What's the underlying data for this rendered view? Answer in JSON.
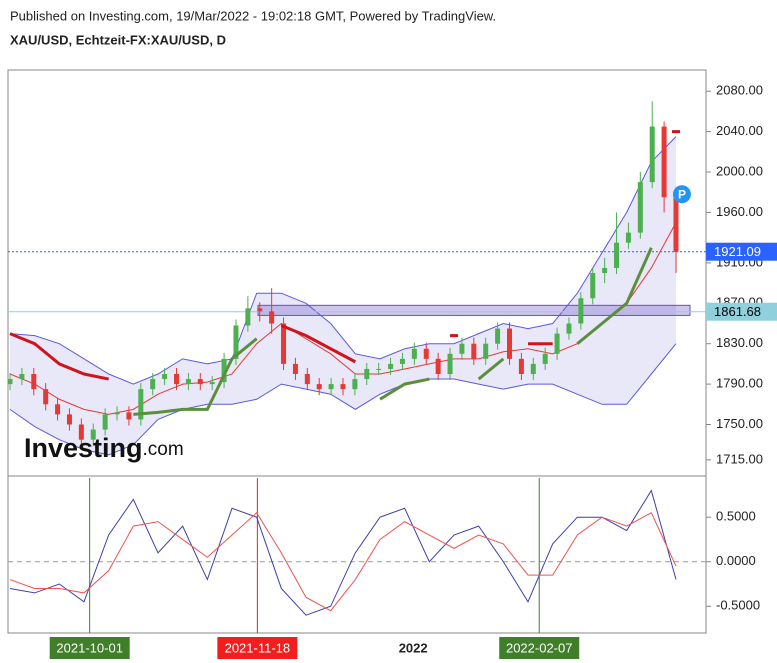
{
  "header": {
    "published": "Published on Investing.com, 19/Mar/2022 - 19:02:18 GMT, Powered by TradingView.",
    "symbol": "XAU/USD, Echtzeit-FX:XAU/USD, D"
  },
  "logo": {
    "brand": "Investing",
    "suffix": ".com"
  },
  "chart_data": [
    {
      "type": "candlestick",
      "up_color": "#4caf50",
      "down_color": "#e53935",
      "open": [
        1790,
        1795,
        1800,
        1785,
        1770,
        1760,
        1750,
        1735,
        1745,
        1760,
        1762,
        1755,
        1785,
        1795,
        1800,
        1790,
        1795,
        1790,
        1792,
        1815,
        1848,
        1865,
        1862,
        1850,
        1810,
        1800,
        1790,
        1785,
        1790,
        1785,
        1795,
        1805,
        1805,
        1810,
        1815,
        1825,
        1815,
        1800,
        1820,
        1830,
        1815,
        1830,
        1845,
        1815,
        1800,
        1810,
        1820,
        1840,
        1850,
        1875,
        1900,
        1905,
        1930,
        1940,
        1990,
        2045,
        1975
      ],
      "high": [
        1801,
        1806,
        1806,
        1791,
        1776,
        1766,
        1756,
        1751,
        1766,
        1768,
        1768,
        1791,
        1801,
        1806,
        1806,
        1801,
        1801,
        1798,
        1821,
        1854,
        1877,
        1871,
        1885,
        1856,
        1816,
        1806,
        1796,
        1796,
        1796,
        1801,
        1811,
        1811,
        1816,
        1821,
        1831,
        1831,
        1821,
        1826,
        1836,
        1836,
        1836,
        1851,
        1851,
        1821,
        1816,
        1826,
        1846,
        1856,
        1881,
        1906,
        1915,
        1960,
        1950,
        2000,
        2070,
        2050,
        1985
      ],
      "low": [
        1784,
        1789,
        1779,
        1764,
        1754,
        1744,
        1729,
        1729,
        1739,
        1754,
        1749,
        1749,
        1779,
        1789,
        1784,
        1784,
        1784,
        1784,
        1786,
        1809,
        1842,
        1852,
        1840,
        1804,
        1794,
        1784,
        1779,
        1779,
        1779,
        1779,
        1789,
        1799,
        1799,
        1804,
        1809,
        1809,
        1794,
        1794,
        1814,
        1809,
        1809,
        1824,
        1809,
        1794,
        1794,
        1804,
        1814,
        1834,
        1844,
        1869,
        1890,
        1899,
        1924,
        1934,
        1984,
        1960,
        1900
      ],
      "close": [
        1795,
        1800,
        1785,
        1770,
        1760,
        1750,
        1735,
        1745,
        1760,
        1762,
        1755,
        1785,
        1795,
        1800,
        1790,
        1795,
        1790,
        1792,
        1815,
        1848,
        1865,
        1862,
        1850,
        1810,
        1800,
        1790,
        1785,
        1790,
        1785,
        1795,
        1805,
        1805,
        1810,
        1815,
        1825,
        1815,
        1800,
        1820,
        1830,
        1815,
        1830,
        1845,
        1815,
        1800,
        1810,
        1820,
        1840,
        1850,
        1875,
        1900,
        1905,
        1930,
        1940,
        1990,
        2045,
        1975,
        1921
      ],
      "bands": {
        "color": "#5a5ae0",
        "upper": [
          1840,
          1838,
          1830,
          1815,
          1800,
          1790,
          1800,
          1815,
          1810,
          1815,
          1880,
          1880,
          1870,
          1850,
          1820,
          1815,
          1825,
          1830,
          1830,
          1840,
          1850,
          1845,
          1850,
          1880,
          1920,
          1960,
          2010,
          2035
        ],
        "middle": [
          1800,
          1790,
          1775,
          1765,
          1760,
          1765,
          1780,
          1790,
          1792,
          1800,
          1830,
          1850,
          1835,
          1820,
          1800,
          1800,
          1805,
          1810,
          1815,
          1815,
          1822,
          1825,
          1820,
          1830,
          1850,
          1870,
          1905,
          1950
        ],
        "lower": [
          1765,
          1748,
          1735,
          1725,
          1720,
          1730,
          1755,
          1765,
          1770,
          1770,
          1775,
          1790,
          1785,
          1780,
          1765,
          1780,
          1790,
          1795,
          1795,
          1790,
          1785,
          1790,
          1790,
          1780,
          1770,
          1770,
          1800,
          1830
        ],
        "middle_color": "#e53935"
      },
      "supertrend": [
        {
          "color": "#d0141e",
          "values": [
            1840,
            1830,
            1810,
            1800,
            1795,
            null,
            null,
            null,
            null,
            null,
            null,
            1848,
            1838,
            1825,
            1812,
            null,
            null,
            null,
            1838,
            null,
            null,
            1830,
            1830,
            null,
            null,
            null,
            null,
            2040
          ]
        },
        {
          "color": "#5b8f3e",
          "values": [
            null,
            null,
            null,
            null,
            null,
            1760,
            1762,
            1765,
            1765,
            1815,
            1835,
            null,
            null,
            null,
            null,
            1775,
            1790,
            1795,
            null,
            1795,
            1815,
            null,
            null,
            1830,
            1850,
            1870,
            1925,
            null
          ]
        }
      ],
      "zone": [
        1858,
        1868
      ],
      "price_lines": [
        {
          "value": 1921.09,
          "label": "1921.09",
          "color": "#2962ff",
          "text_color": "#ffffff"
        },
        {
          "value": 1861.68,
          "label": "1861.68",
          "color": "#8fd0dc",
          "text_color": "#000000"
        }
      ],
      "marker": {
        "label": "P",
        "value": 1978,
        "position": 56.5,
        "color": "#2196f3"
      },
      "ylim": [
        1700,
        2101
      ],
      "yticks": [
        {
          "value": 2080,
          "label": "2080.00"
        },
        {
          "value": 2040,
          "label": "2040.00"
        },
        {
          "value": 2000,
          "label": "2000.00"
        },
        {
          "value": 1960,
          "label": "1960.00"
        },
        {
          "value": 1910,
          "label": "1910.00"
        },
        {
          "value": 1870,
          "label": "1870.00"
        },
        {
          "value": 1830,
          "label": "1830.00"
        },
        {
          "value": 1790,
          "label": "1790.00"
        },
        {
          "value": 1750,
          "label": "1750.00"
        },
        {
          "value": 1715,
          "label": "1715.00"
        }
      ]
    },
    {
      "type": "line",
      "series": [
        {
          "color": "#3f3fa8",
          "values": [
            -0.3,
            -0.35,
            -0.25,
            -0.45,
            0.3,
            0.7,
            0.1,
            0.4,
            -0.2,
            0.6,
            0.5,
            -0.3,
            -0.6,
            -0.5,
            0.1,
            0.5,
            0.6,
            0.0,
            0.3,
            0.4,
            0.0,
            -0.45,
            0.2,
            0.5,
            0.5,
            0.35,
            0.8,
            -0.2
          ]
        },
        {
          "color": "#ef5350",
          "values": [
            -0.2,
            -0.3,
            -0.3,
            -0.35,
            -0.1,
            0.4,
            0.45,
            0.25,
            0.05,
            0.3,
            0.55,
            0.1,
            -0.4,
            -0.55,
            -0.2,
            0.25,
            0.45,
            0.3,
            0.15,
            0.3,
            0.2,
            -0.15,
            -0.15,
            0.3,
            0.5,
            0.4,
            0.55,
            -0.05
          ]
        }
      ],
      "ylim": [
        -0.8,
        0.94
      ],
      "yticks": [
        {
          "value": 0.5,
          "label": "0.5000"
        },
        {
          "value": 0,
          "label": "0.0000"
        },
        {
          "value": -0.5,
          "label": "-0.5000"
        }
      ],
      "zero_line": true,
      "x_labels": [
        {
          "position": 6.7,
          "label": "2021-10-01",
          "color": "#3f7f2a"
        },
        {
          "position": 20.8,
          "label": "2021-11-18",
          "color": "#f21d1d"
        },
        {
          "position": 33.9,
          "label": "2022"
        },
        {
          "position": 44.5,
          "label": "2022-02-07",
          "color": "#3f7f2a"
        }
      ]
    }
  ]
}
